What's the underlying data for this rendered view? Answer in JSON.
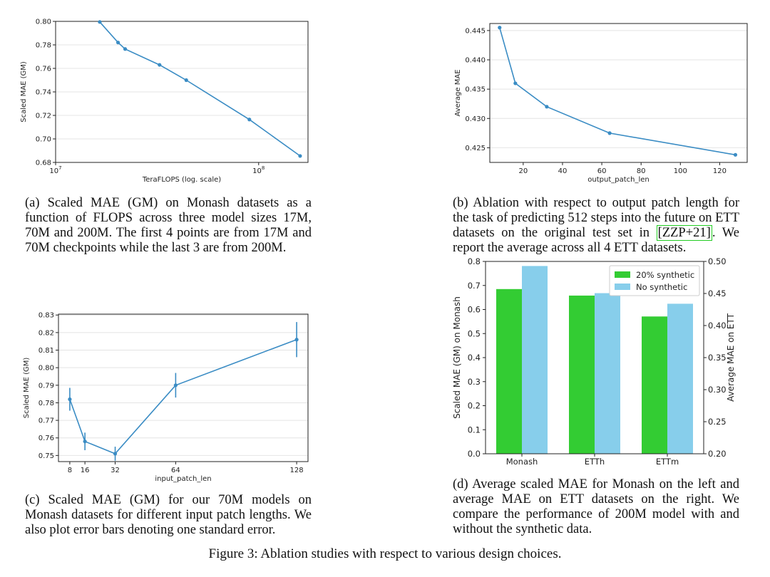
{
  "chart_data": [
    {
      "id": "a",
      "type": "line",
      "xscale": "log",
      "x": [
        16.5,
        20.3,
        22.0,
        32.5,
        44.0,
        90.0,
        160.0
      ],
      "y": [
        0.7995,
        0.782,
        0.7765,
        0.763,
        0.75,
        0.7165,
        0.6855
      ],
      "xlim": [
        10,
        175
      ],
      "ylim": [
        0.68,
        0.8
      ],
      "yticks": [
        "0.68",
        "0.70",
        "0.72",
        "0.74",
        "0.76",
        "0.78",
        "0.80"
      ],
      "xticks": [
        {
          "value": 10,
          "base": "10",
          "exp": "7"
        },
        {
          "value": 100,
          "base": "10",
          "exp": "8"
        }
      ],
      "xlabel": "TeraFLOPS (log. scale)",
      "ylabel": "Scaled MAE (GM)",
      "grid": "horizontal",
      "color": "#3a8cc4"
    },
    {
      "id": "b",
      "type": "line",
      "x": [
        8,
        16,
        32,
        64,
        128
      ],
      "y": [
        0.4455,
        0.436,
        0.432,
        0.4275,
        0.4238
      ],
      "xlim": [
        3,
        134
      ],
      "ylim": [
        0.4225,
        0.4462
      ],
      "yticks": [
        "0.425",
        "0.430",
        "0.435",
        "0.440",
        "0.445"
      ],
      "xticks": [
        "20",
        "40",
        "60",
        "80",
        "100",
        "120"
      ],
      "xlabel": "output_patch_len",
      "ylabel": "Average MAE",
      "grid": "horizontal",
      "color": "#3a8cc4"
    },
    {
      "id": "c",
      "type": "line",
      "x": [
        8,
        16,
        32,
        64,
        128
      ],
      "y": [
        0.782,
        0.758,
        0.751,
        0.79,
        0.816
      ],
      "yerr": [
        0.0065,
        0.005,
        0.004,
        0.007,
        0.01
      ],
      "xlim": [
        2,
        134
      ],
      "ylim": [
        0.7465,
        0.8305
      ],
      "yticks": [
        "0.75",
        "0.76",
        "0.77",
        "0.78",
        "0.79",
        "0.80",
        "0.81",
        "0.82",
        "0.83"
      ],
      "xticks": [
        "8",
        "16",
        "32",
        "64",
        "128"
      ],
      "xlabel": "input_patch_len",
      "ylabel": "Scaled MAE (GM)",
      "grid": "horizontal",
      "color": "#3a8cc4"
    },
    {
      "id": "d",
      "type": "bar",
      "categories": [
        "Monash",
        "ETTh",
        "ETTm"
      ],
      "series": [
        {
          "name": "20% synthetic",
          "values": [
            0.685,
            0.658,
            0.571
          ],
          "axis": "left",
          "color": "#33cc33"
        },
        {
          "name": "No synthetic",
          "values": [
            0.781,
            0.668,
            0.624
          ],
          "axis": "left",
          "color": "#87ceeb"
        }
      ],
      "ylim": [
        0.0,
        0.8
      ],
      "ylim_right": [
        0.2,
        0.5
      ],
      "yticks": [
        "0.0",
        "0.1",
        "0.2",
        "0.3",
        "0.4",
        "0.5",
        "0.6",
        "0.7",
        "0.8"
      ],
      "yticks_right": [
        "0.20",
        "0.25",
        "0.30",
        "0.35",
        "0.40",
        "0.45",
        "0.50"
      ],
      "ylabel": "Scaled MAE (GM) on Monash",
      "ylabel_right": "Average MAE on ETT",
      "legend": "top-right"
    }
  ],
  "captions": {
    "a": "(a) Scaled MAE (GM) on Monash datasets as a function of FLOPS across three model sizes 17M, 70M and 200M. The first 4 points are from 17M and 70M checkpoints while the last 3 are from 200M.",
    "b_pre": "(b) Ablation with respect to output patch length for the task of predicting 512 steps into the future on ETT datasets on the original test set in ",
    "b_cite": "[ZZP+21]",
    "b_post": ". We report the average across all 4 ETT datasets.",
    "c": "(c) Scaled MAE (GM) for our 70M models on Monash datasets for different input patch lengths. We also plot error bars denoting one standard error.",
    "d": "(d) Average scaled MAE for Monash on the left and average MAE on ETT datasets on the right. We compare the performance of 200M model with and without the synthetic data."
  },
  "figure_caption": "Figure 3: Ablation studies with respect to various design choices."
}
